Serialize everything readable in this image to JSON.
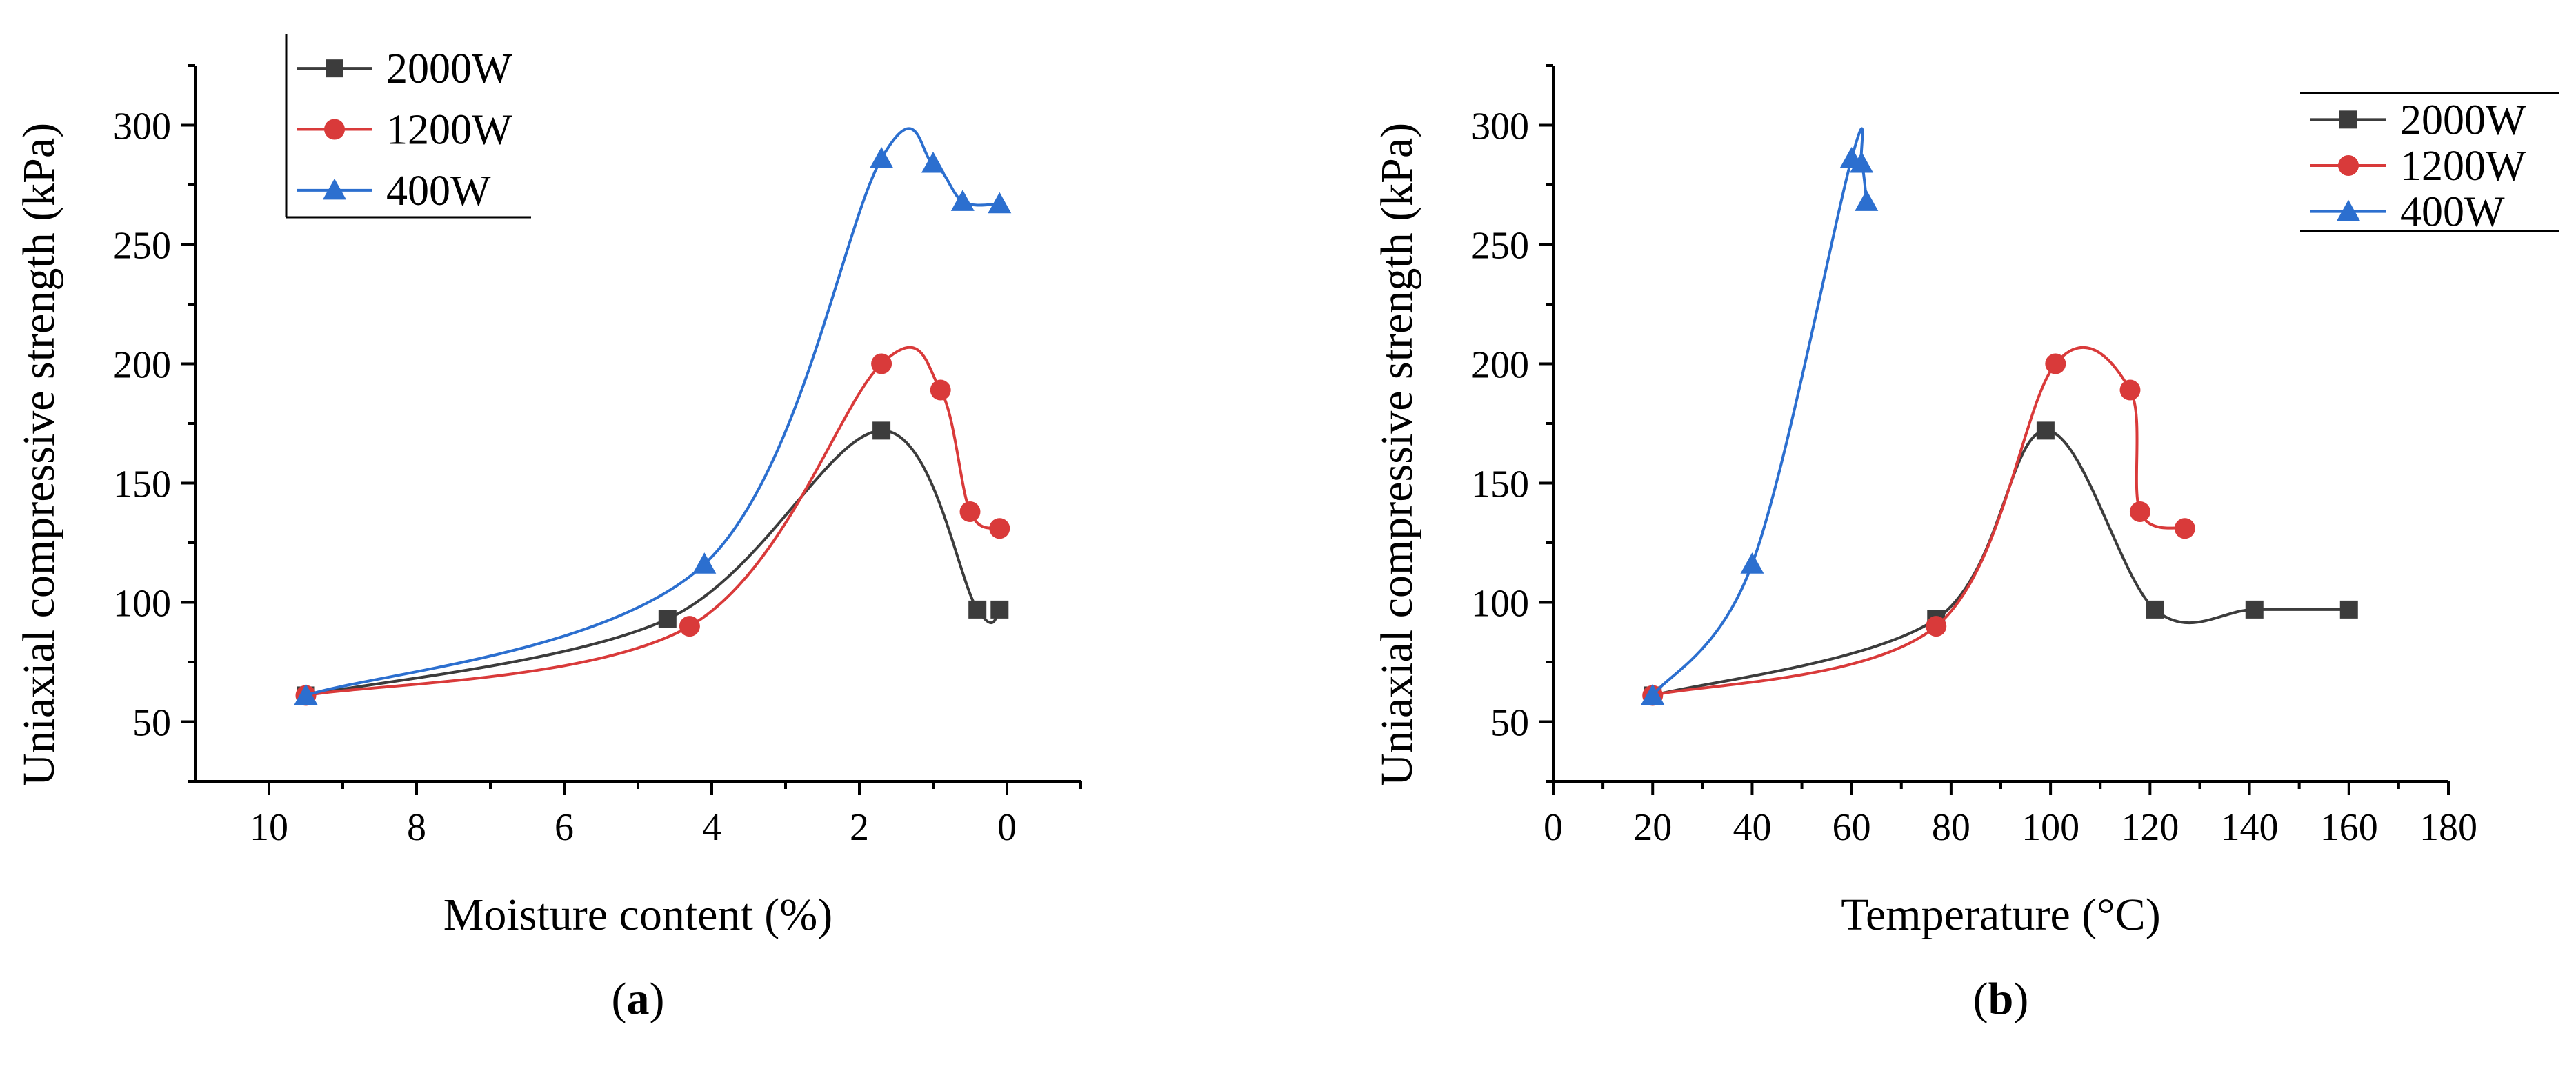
{
  "colors": {
    "2000W": "#3c3c3c",
    "1200W": "#d93a3a",
    "400W": "#2c6fcf"
  },
  "chart_data": [
    {
      "type": "line",
      "panel": "(a)",
      "panel_letter": "a",
      "xlabel": "Moisture content (%)",
      "ylabel": "Uniaxial compressive strength (kPa)",
      "xlim": [
        11,
        -1
      ],
      "ylim": [
        25,
        325
      ],
      "xticks": [
        10,
        8,
        6,
        4,
        2,
        0
      ],
      "yticks": [
        50,
        100,
        150,
        200,
        250,
        300
      ],
      "legend_position": "top-left",
      "series": [
        {
          "name": "2000W",
          "marker": "square",
          "x": [
            9.5,
            4.6,
            1.7,
            0.4,
            0.1
          ],
          "y": [
            61,
            93,
            172,
            97,
            97
          ]
        },
        {
          "name": "1200W",
          "marker": "circle",
          "x": [
            9.5,
            4.3,
            1.7,
            0.9,
            0.5,
            0.1
          ],
          "y": [
            61,
            90,
            200,
            189,
            138,
            131
          ]
        },
        {
          "name": "400W",
          "marker": "triangle",
          "x": [
            9.5,
            4.1,
            1.7,
            1.0,
            0.6,
            0.1
          ],
          "y": [
            61,
            116,
            286,
            284,
            268,
            267
          ]
        }
      ]
    },
    {
      "type": "line",
      "panel": "(b)",
      "panel_letter": "b",
      "xlabel": "Temperature (°C)",
      "ylabel": "Uniaxial compressive strength (kPa)",
      "xlim": [
        0,
        180
      ],
      "ylim": [
        25,
        325
      ],
      "xticks": [
        0,
        20,
        40,
        60,
        80,
        100,
        120,
        140,
        160,
        180
      ],
      "yticks": [
        50,
        100,
        150,
        200,
        250,
        300
      ],
      "legend_position": "top-right",
      "series": [
        {
          "name": "2000W",
          "marker": "square",
          "x": [
            20,
            77,
            99,
            121,
            141,
            160
          ],
          "y": [
            61,
            93,
            172,
            97,
            97,
            97
          ]
        },
        {
          "name": "1200W",
          "marker": "circle",
          "x": [
            20,
            77,
            101,
            116,
            118,
            127
          ],
          "y": [
            61,
            90,
            200,
            189,
            138,
            131
          ]
        },
        {
          "name": "400W",
          "marker": "triangle",
          "x": [
            20,
            40,
            60,
            62,
            63
          ],
          "y": [
            61,
            116,
            286,
            284,
            268
          ]
        }
      ]
    }
  ]
}
